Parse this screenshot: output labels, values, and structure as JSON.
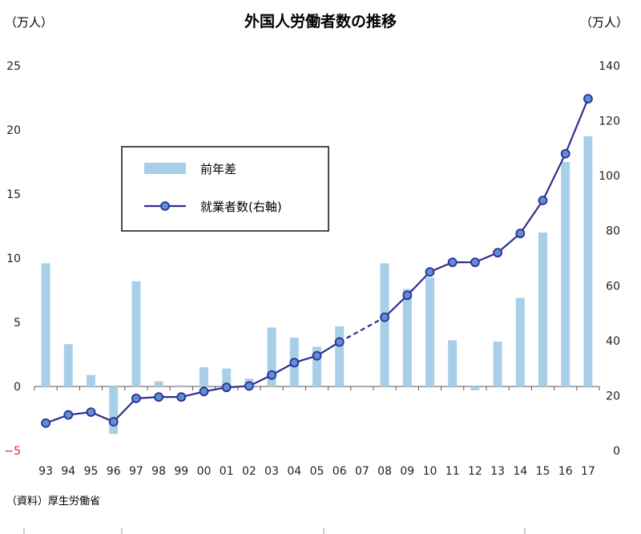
{
  "chart_data": {
    "type": "bar+line",
    "title": "外国人労働者数の推移",
    "left_unit": "（万人）",
    "right_unit": "（万人）",
    "source": "（資料）厚生労働省",
    "categories": [
      "93",
      "94",
      "95",
      "96",
      "97",
      "98",
      "99",
      "00",
      "01",
      "02",
      "03",
      "04",
      "05",
      "06",
      "07",
      "08",
      "09",
      "10",
      "11",
      "12",
      "13",
      "14",
      "15",
      "16",
      "17"
    ],
    "left_axis": {
      "ylim": [
        -5,
        25
      ],
      "ticks": [
        -5,
        0,
        5,
        10,
        15,
        20,
        25
      ]
    },
    "right_axis": {
      "ylim": [
        0,
        140
      ],
      "ticks": [
        0,
        20,
        40,
        60,
        80,
        100,
        120,
        140
      ]
    },
    "negative_tick_color": "#e8202a",
    "bar_series": {
      "name": "前年差",
      "color": "#a8cfe8",
      "axis": "left",
      "values": [
        9.6,
        3.3,
        0.9,
        -3.7,
        8.2,
        0.4,
        0.1,
        1.5,
        1.4,
        0.6,
        4.6,
        3.8,
        3.1,
        4.7,
        null,
        9.6,
        7.6,
        8.5,
        3.6,
        -0.3,
        3.5,
        6.9,
        12.0,
        17.5,
        19.5
      ]
    },
    "line_series": {
      "name": "就業者数(右軸)",
      "color": "#2f2f8f",
      "marker_fill": "#5b8fd6",
      "axis": "right",
      "values": [
        10.0,
        13.0,
        14.0,
        10.5,
        19.0,
        19.5,
        19.5,
        21.5,
        23.0,
        23.5,
        27.5,
        32.0,
        34.5,
        39.5,
        null,
        48.5,
        56.5,
        65.0,
        68.5,
        68.5,
        72.0,
        79.0,
        91.0,
        108.0,
        128.0
      ],
      "dashed_between": [
        "06",
        "08"
      ]
    }
  }
}
